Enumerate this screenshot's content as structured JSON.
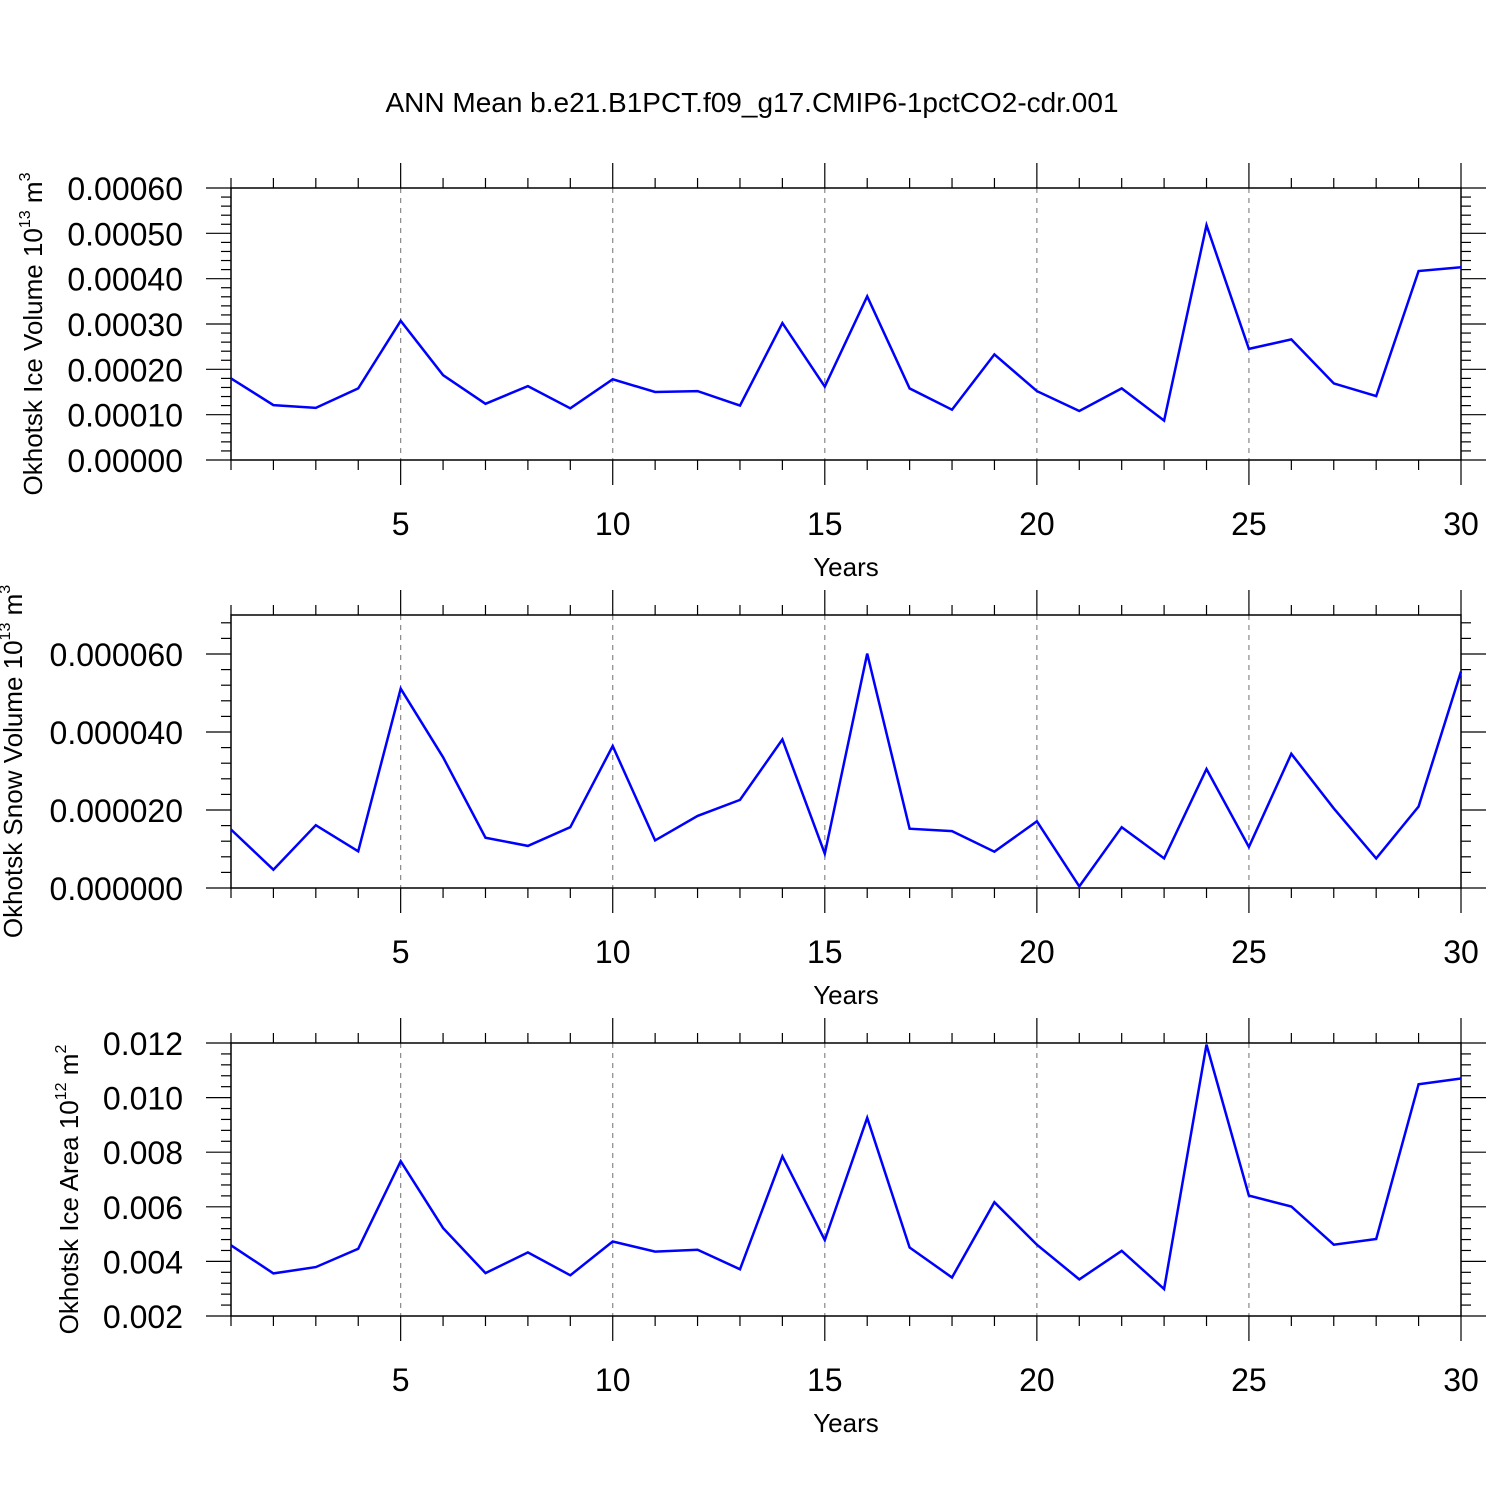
{
  "figure": {
    "title": "ANN Mean b.e21.B1PCT.f09_g17.CMIP6-1pctCO2-cdr.001",
    "line_color": "#0000ff"
  },
  "chart_data": [
    {
      "type": "line",
      "xlabel": "Years",
      "ylabel": {
        "text": "Okhotsk Ice Volume 10",
        "exp": "13",
        "unit": "m",
        "unit_exp": "3"
      },
      "xlim": [
        1,
        30
      ],
      "ylim": [
        0.0,
        0.0006
      ],
      "xticks": [
        5,
        10,
        15,
        20,
        25,
        30
      ],
      "xtick_labels": [
        "5",
        "10",
        "15",
        "20",
        "25",
        "30"
      ],
      "yticks": [
        0.0,
        0.0001,
        0.0002,
        0.0003,
        0.0004,
        0.0005,
        0.0006
      ],
      "ytick_labels": [
        "0.00000",
        "0.00010",
        "0.00020",
        "0.00030",
        "0.00040",
        "0.00050",
        "0.00060"
      ],
      "grid": "dashed vertical at major x ticks",
      "series": [
        {
          "x": [
            1,
            2,
            3,
            4,
            5,
            6,
            7,
            8,
            9,
            10,
            11,
            12,
            13,
            14,
            15,
            16,
            17,
            18,
            19,
            20,
            21,
            22,
            23,
            24,
            25,
            26,
            27,
            28,
            29,
            30
          ],
          "values": [
            0.00018,
            0.000121,
            0.000115,
            0.000158,
            0.000307,
            0.000187,
            0.000124,
            0.000163,
            0.000114,
            0.000178,
            0.00015,
            0.000152,
            0.00012,
            0.000302,
            0.000162,
            0.000361,
            0.000158,
            0.000111,
            0.000233,
            0.000152,
            0.000108,
            0.000158,
            8.7e-05,
            0.000518,
            0.000245,
            0.000266,
            0.000169,
            0.000141,
            0.000417,
            0.000425
          ]
        }
      ]
    },
    {
      "type": "line",
      "xlabel": "Years",
      "ylabel": {
        "text": "Okhotsk Snow Volume 10",
        "exp": "13",
        "unit": "m",
        "unit_exp": "3"
      },
      "xlim": [
        1,
        30
      ],
      "ylim": [
        0.0,
        7e-05
      ],
      "xticks": [
        5,
        10,
        15,
        20,
        25,
        30
      ],
      "xtick_labels": [
        "5",
        "10",
        "15",
        "20",
        "25",
        "30"
      ],
      "yticks": [
        0.0,
        2e-05,
        4e-05,
        6e-05
      ],
      "ytick_labels": [
        "0.000000",
        "0.000020",
        "0.000040",
        "0.000060"
      ],
      "grid": "dashed vertical at major x ticks",
      "series": [
        {
          "x": [
            1,
            2,
            3,
            4,
            5,
            6,
            7,
            8,
            9,
            10,
            11,
            12,
            13,
            14,
            15,
            16,
            17,
            18,
            19,
            20,
            21,
            22,
            23,
            24,
            25,
            26,
            27,
            28,
            29,
            30
          ],
          "values": [
            1.5e-05,
            4.7e-06,
            1.61e-05,
            9.4e-06,
            5.11e-05,
            3.35e-05,
            1.29e-05,
            1.08e-05,
            1.56e-05,
            3.64e-05,
            1.22e-05,
            1.85e-05,
            2.26e-05,
            3.81e-05,
            8.8e-06,
            6.01e-05,
            1.52e-05,
            1.46e-05,
            9.3e-06,
            1.71e-05,
            4e-07,
            1.56e-05,
            7.6e-06,
            3.05e-05,
            1.05e-05,
            3.44e-05,
            2.04e-05,
            7.6e-06,
            2.09e-05,
            5.55e-05
          ]
        }
      ]
    },
    {
      "type": "line",
      "xlabel": "Years",
      "ylabel": {
        "text": "Okhotsk Ice Area 10",
        "exp": "12",
        "unit": "m",
        "unit_exp": "2"
      },
      "xlim": [
        1,
        30
      ],
      "ylim": [
        0.002,
        0.012
      ],
      "xticks": [
        5,
        10,
        15,
        20,
        25,
        30
      ],
      "xtick_labels": [
        "5",
        "10",
        "15",
        "20",
        "25",
        "30"
      ],
      "yticks": [
        0.002,
        0.004,
        0.006,
        0.008,
        0.01,
        0.012
      ],
      "ytick_labels": [
        "0.002",
        "0.004",
        "0.006",
        "0.008",
        "0.010",
        "0.012"
      ],
      "grid": "dashed vertical at major x ticks",
      "series": [
        {
          "x": [
            1,
            2,
            3,
            4,
            5,
            6,
            7,
            8,
            9,
            10,
            11,
            12,
            13,
            14,
            15,
            16,
            17,
            18,
            19,
            20,
            21,
            22,
            23,
            24,
            25,
            26,
            27,
            28,
            29,
            30
          ],
          "values": [
            0.00459,
            0.00356,
            0.00379,
            0.00446,
            0.00767,
            0.00522,
            0.00357,
            0.00433,
            0.00349,
            0.00473,
            0.00436,
            0.00443,
            0.00371,
            0.00785,
            0.00478,
            0.00926,
            0.00451,
            0.00341,
            0.00617,
            0.00461,
            0.00334,
            0.00439,
            0.00299,
            0.01194,
            0.00641,
            0.00601,
            0.00461,
            0.00482,
            0.01049,
            0.0107
          ]
        }
      ]
    }
  ]
}
